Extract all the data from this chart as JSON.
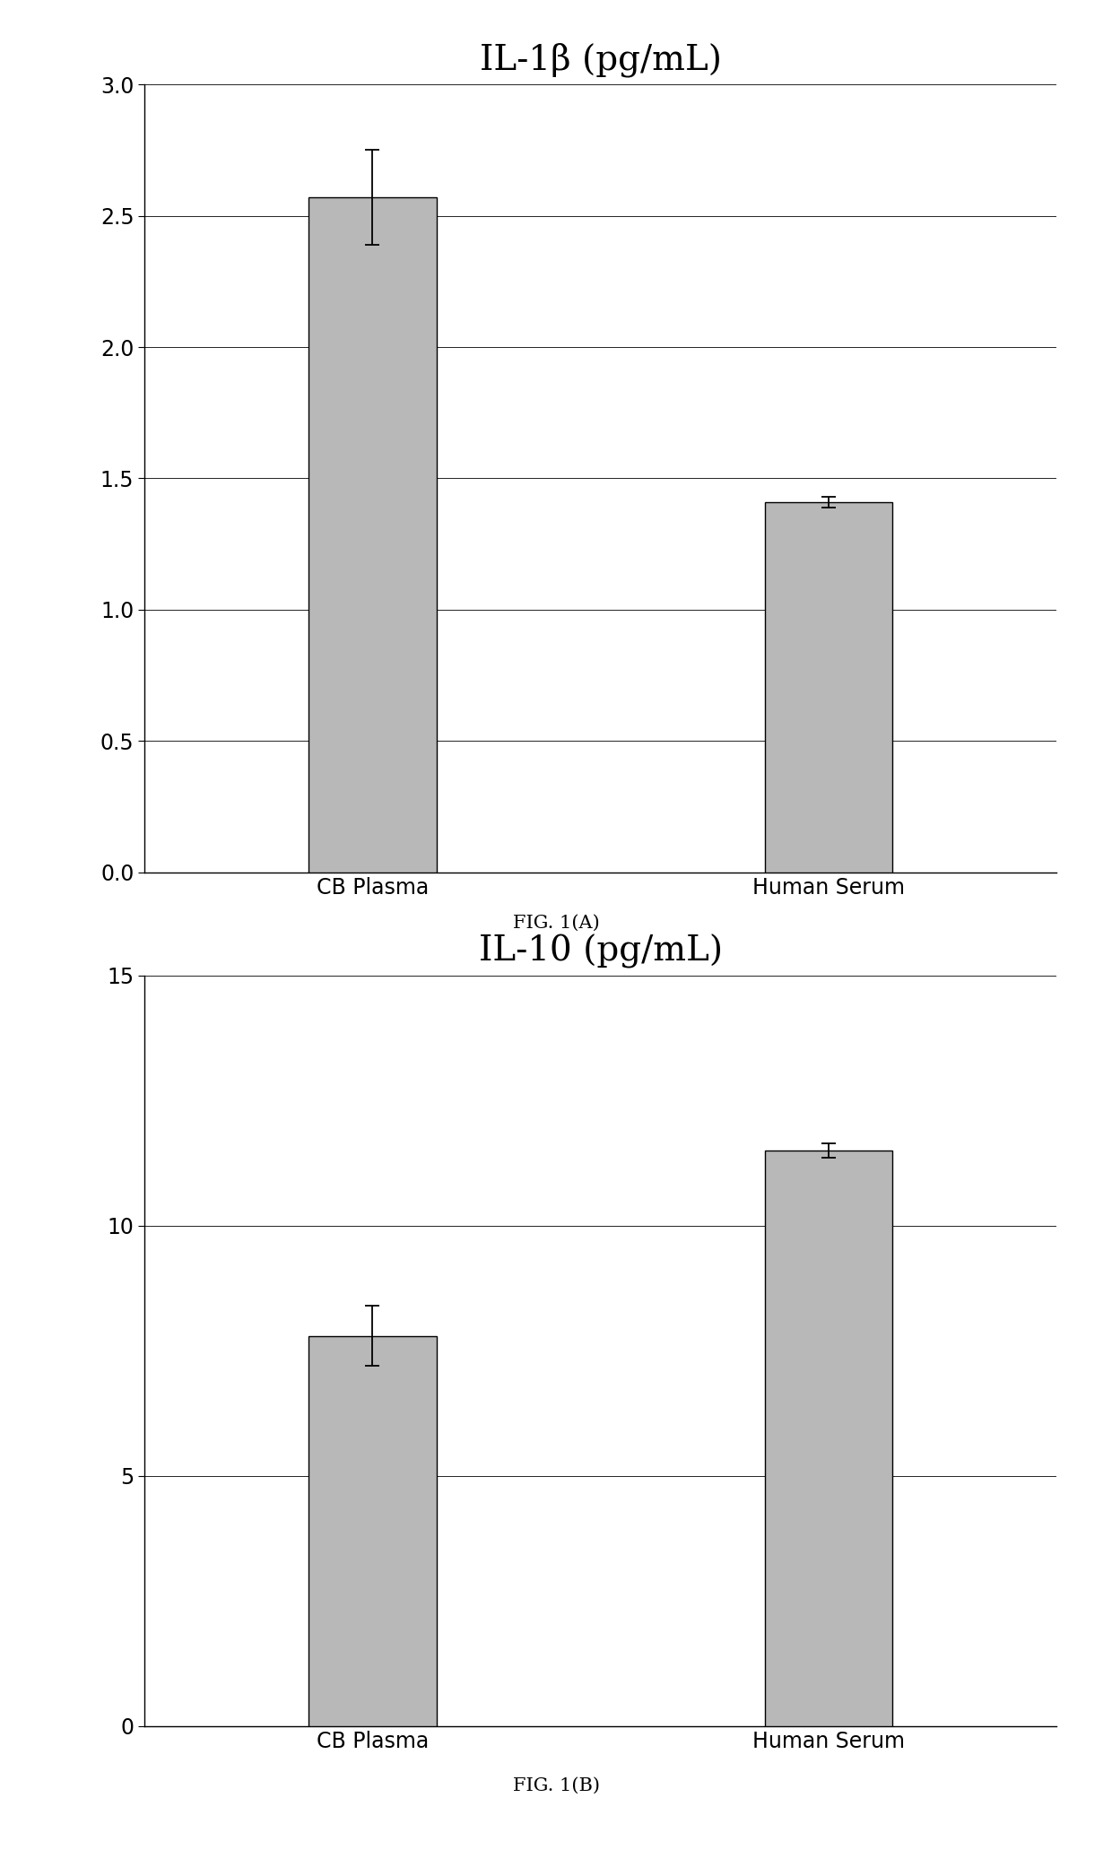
{
  "chart_A": {
    "title": "IL-1β (pg/mL)",
    "categories": [
      "CB Plasma",
      "Human Serum"
    ],
    "values": [
      2.57,
      1.41
    ],
    "errors": [
      0.18,
      0.02
    ],
    "ylim": [
      0.0,
      3.0
    ],
    "yticks": [
      0.0,
      0.5,
      1.0,
      1.5,
      2.0,
      2.5,
      3.0
    ],
    "caption": "FIG. 1(A)"
  },
  "chart_B": {
    "title": "IL-10 (pg/mL)",
    "categories": [
      "CB Plasma",
      "Human Serum"
    ],
    "values": [
      7.8,
      11.5
    ],
    "errors": [
      0.6,
      0.15
    ],
    "ylim": [
      0,
      15
    ],
    "yticks": [
      0,
      5,
      10,
      15
    ],
    "caption": "FIG. 1(B)"
  },
  "bar_color": "#b8b8b8",
  "bar_edgecolor": "#000000",
  "bar_width": 0.28,
  "title_fontsize": 28,
  "tick_fontsize": 17,
  "caption_fontsize": 15,
  "xtick_fontsize": 17,
  "background_color": "#ffffff",
  "grid_color": "#000000",
  "error_capsize": 6,
  "error_color": "#000000",
  "grid_linewidth": 0.6,
  "bar_linewidth": 1.0
}
